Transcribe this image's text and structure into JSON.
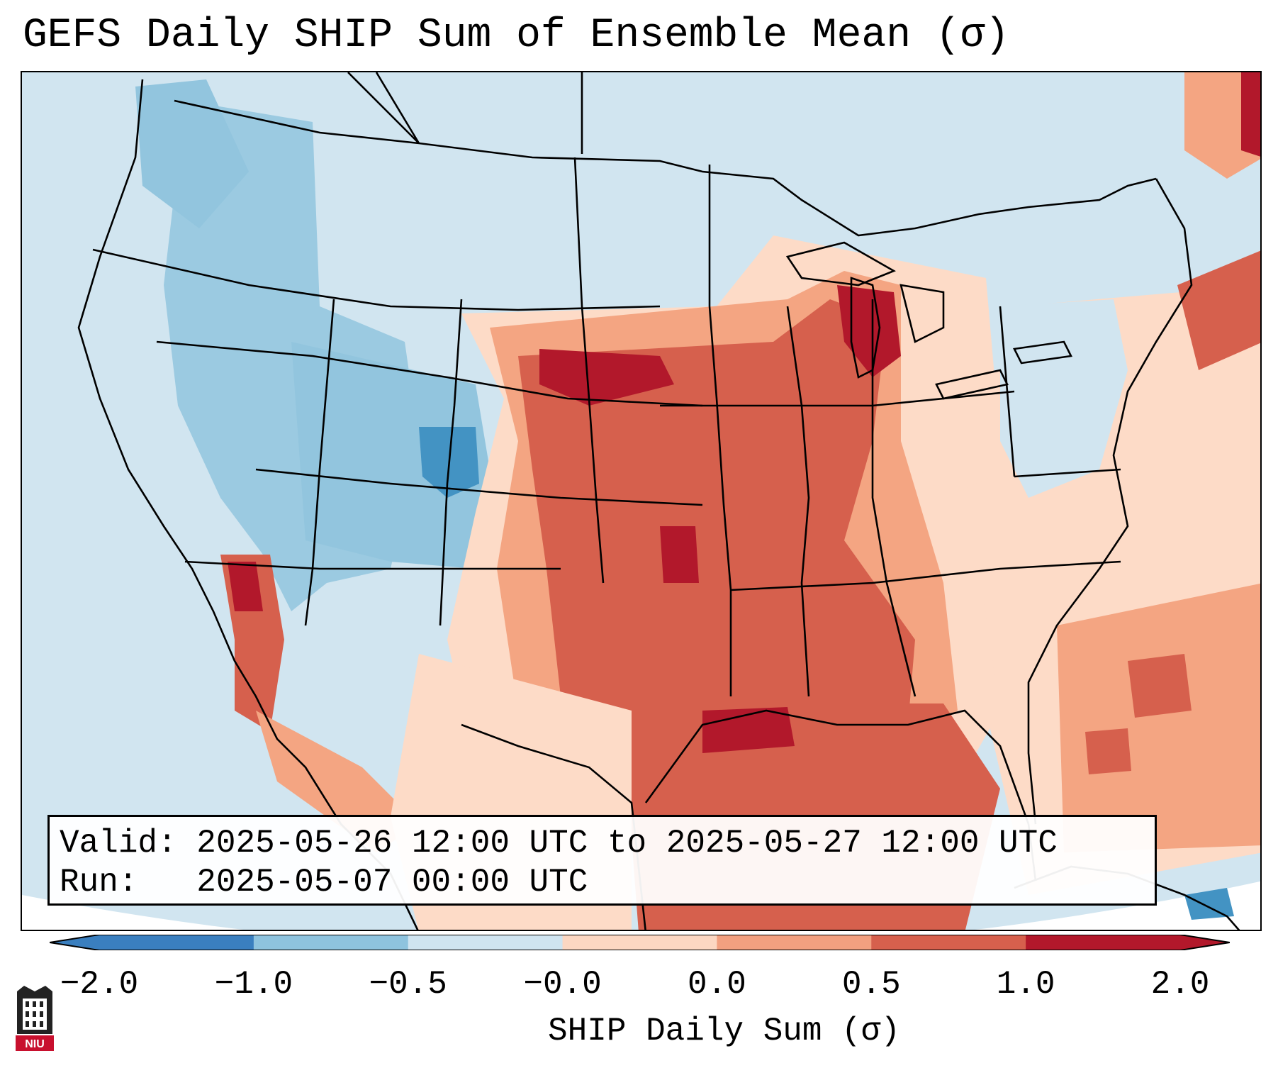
{
  "title": "GEFS Daily SHIP Sum of Ensemble Mean (σ)",
  "info": {
    "valid_label": "Valid:",
    "valid_value": "2025-05-26 12:00 UTC to 2025-05-27 12:00 UTC",
    "run_label": "Run:",
    "run_value": "2025-05-07 00:00 UTC"
  },
  "colorbar": {
    "title": "SHIP Daily Sum (σ)",
    "ticks": [
      "−2.0",
      "−1.0",
      "−0.5",
      "−0.0",
      "0.0",
      "0.5",
      "1.0",
      "2.0"
    ],
    "colors": [
      "#3a7fbf",
      "#8ec3de",
      "#cfe4f0",
      "#ffffff",
      "#fcd7c2",
      "#f2a080",
      "#d6604d",
      "#b2182b"
    ],
    "extend": "both"
  },
  "map": {
    "land_blue": "#d1e5f0",
    "ocean_blue": "#d1e5f0",
    "mid_blue": "#92c5de",
    "deep_blue": "#4393c3",
    "light_red": "#fddbc7",
    "mid_red": "#f4a582",
    "red": "#d6604d",
    "dark_red": "#b2182b"
  },
  "logo": {
    "text": "NIU"
  }
}
